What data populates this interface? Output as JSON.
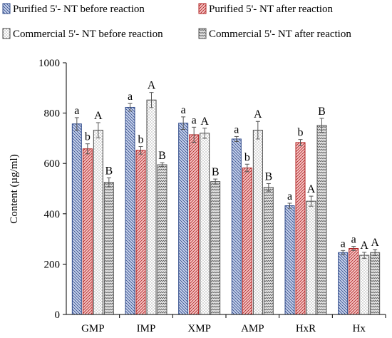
{
  "chart_data": {
    "type": "bar",
    "title": "",
    "xlabel": "",
    "ylabel": "Content (µg/ml)",
    "ylim": [
      0,
      1000
    ],
    "yticks": [
      0,
      200,
      400,
      600,
      800,
      1000
    ],
    "grid": false,
    "legend_position": "top",
    "categories": [
      "GMP",
      "IMP",
      "XMP",
      "AMP",
      "HxR",
      "Hx"
    ],
    "series": [
      {
        "name": "Purified 5'- NT before reaction",
        "values": [
          757,
          823,
          760,
          697,
          432,
          246
        ],
        "errors": [
          25,
          15,
          25,
          10,
          10,
          8
        ],
        "labels": [
          "a",
          "a",
          "a",
          "a",
          "a",
          "a"
        ],
        "fill": "#ccd6ee",
        "stroke": "#2f4a8a",
        "pattern": "hatch-left"
      },
      {
        "name": "Purified 5'- NT after reaction",
        "values": [
          658,
          652,
          714,
          582,
          683,
          262
        ],
        "errors": [
          20,
          15,
          30,
          15,
          12,
          8
        ],
        "labels": [
          "b",
          "b",
          "a",
          "b",
          "b",
          "a"
        ],
        "fill": "#f6caca",
        "stroke": "#b02020",
        "pattern": "hatch-right"
      },
      {
        "name": "Commercial 5'- NT before reaction",
        "values": [
          732,
          852,
          720,
          732,
          450,
          235
        ],
        "errors": [
          30,
          30,
          20,
          35,
          20,
          12
        ],
        "labels": [
          "A",
          "A",
          "A",
          "A",
          "A",
          "A"
        ],
        "fill": "#ffffff",
        "stroke": "#444444",
        "pattern": "dots"
      },
      {
        "name": "Commercial 5'- NT after reaction",
        "values": [
          525,
          595,
          528,
          505,
          751,
          246
        ],
        "errors": [
          18,
          8,
          10,
          15,
          28,
          12
        ],
        "labels": [
          "B",
          "B",
          "B",
          "B",
          "B",
          "A"
        ],
        "fill": "#e8e8e8",
        "stroke": "#555555",
        "pattern": "zigzag"
      }
    ],
    "colors": {
      "axis": "#000000",
      "errorbar": "#555555"
    }
  }
}
